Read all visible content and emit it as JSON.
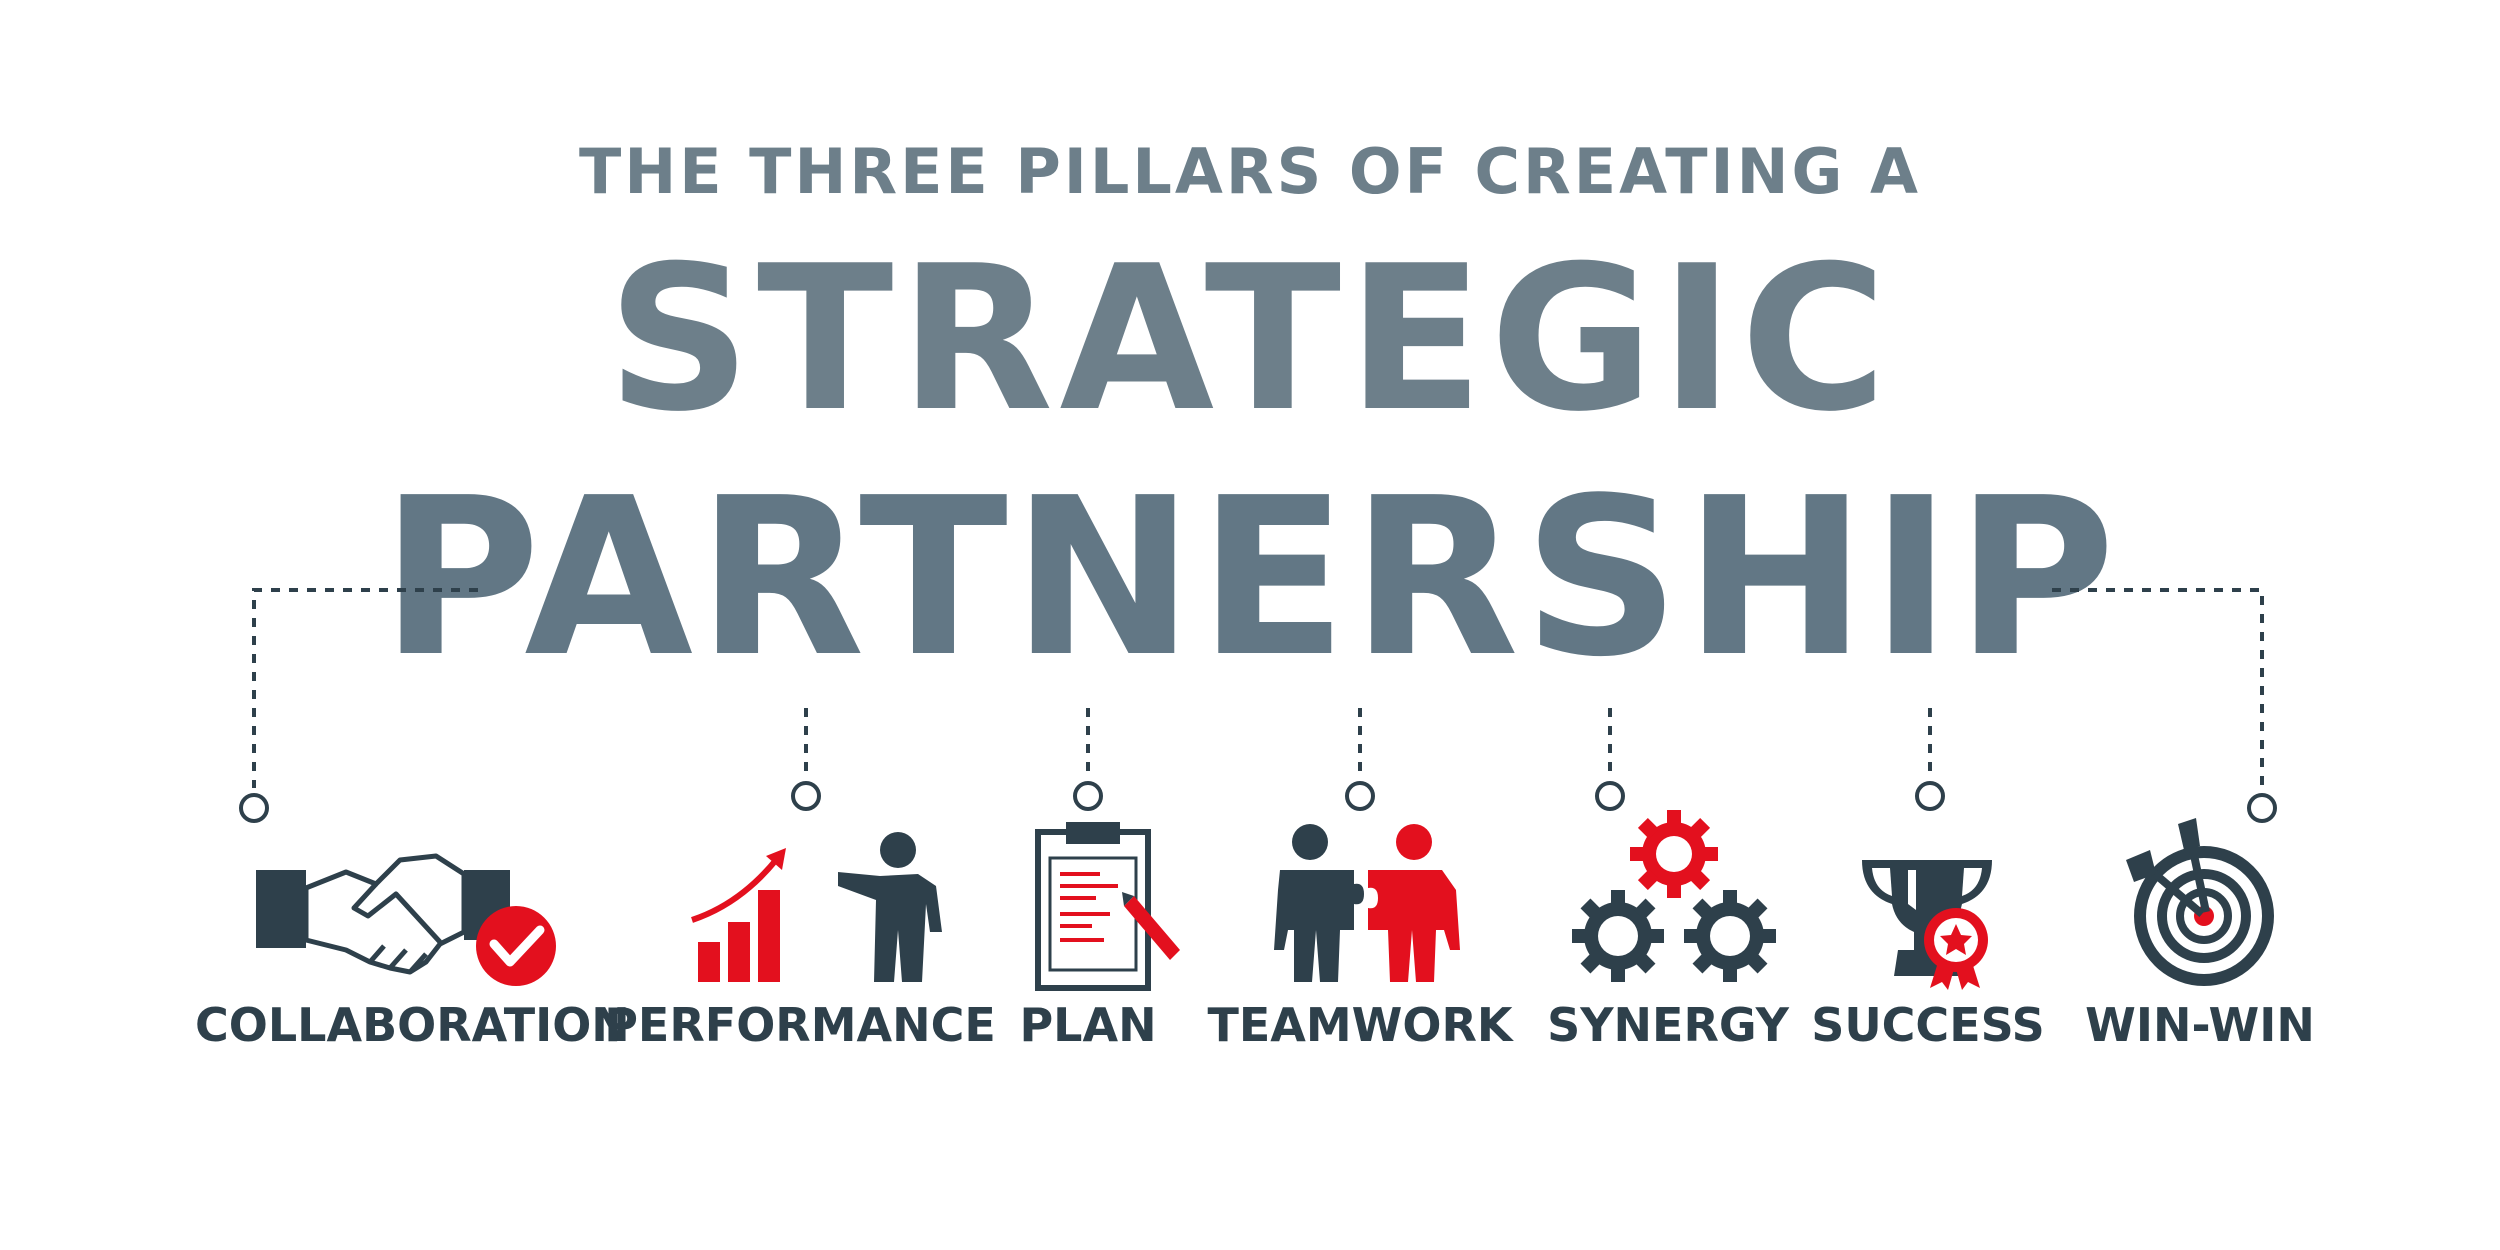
{
  "header": {
    "subtitle": "THE THREE PILLARS OF CREATING A",
    "title_line_1": "STRATEGIC",
    "title_line_2": "PARTNERSHIP"
  },
  "colors": {
    "dark": "#2e404b",
    "slate": "#6d7f8a",
    "red": "#e3101e",
    "connector": "#2e404b"
  },
  "pillars": [
    {
      "label": "COLLABORATION",
      "icon": "handshake-check-icon"
    },
    {
      "label": "PERFORMANCE",
      "icon": "growth-chart-presenter-icon"
    },
    {
      "label": "PLAN",
      "icon": "clipboard-pencil-icon"
    },
    {
      "label": "TEAMWORK",
      "icon": "puzzle-people-icon"
    },
    {
      "label": "SYNERGY",
      "icon": "gears-icon"
    },
    {
      "label": "SUCCESS",
      "icon": "trophy-award-icon"
    },
    {
      "label": "WIN-WIN",
      "icon": "target-darts-icon"
    }
  ]
}
